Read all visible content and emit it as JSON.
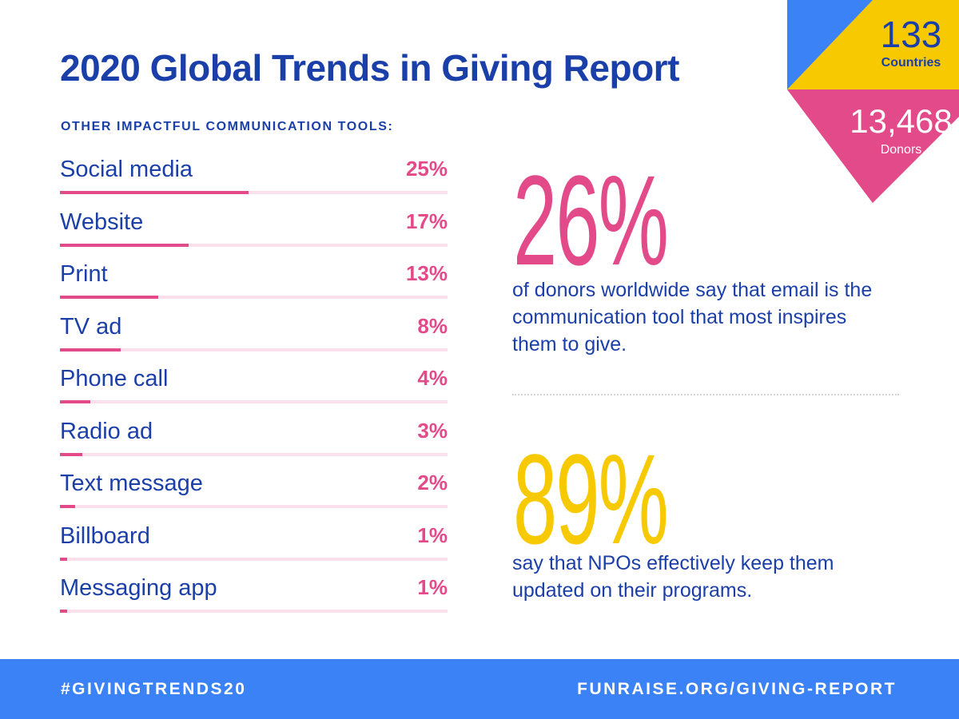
{
  "title": "2020 Global Trends in Giving Report",
  "chart_data": {
    "type": "bar",
    "title": "OTHER IMPACTFUL COMMUNICATION TOOLS:",
    "categories": [
      "Social media",
      "Website",
      "Print",
      "TV ad",
      "Phone call",
      "Radio ad",
      "Text message",
      "Billboard",
      "Messaging app"
    ],
    "values": [
      25,
      17,
      13,
      8,
      4,
      3,
      2,
      1,
      1
    ],
    "value_labels": [
      "25%",
      "17%",
      "13%",
      "8%",
      "4%",
      "3%",
      "2%",
      "1%",
      "1%"
    ],
    "unit": "%",
    "ylim": [
      0,
      100
    ],
    "orientation": "horizontal"
  },
  "stats": [
    {
      "value": "26%",
      "text": "of donors worldwide say that email is the communication tool that most inspires them to give."
    },
    {
      "value": "89%",
      "text": "say that NPOs effectively keep them updated on their programs."
    }
  ],
  "badge": {
    "countries_value": "133",
    "countries_label": "Countries",
    "donors_value": "13,468",
    "donors_label": "Donors"
  },
  "footer": {
    "hashtag": "#GIVINGTRENDS20",
    "url": "FUNRAISE.ORG/GIVING-REPORT"
  },
  "colors": {
    "navy": "#1b3fa8",
    "pink": "#e34a8a",
    "yellow": "#f7c900",
    "blue": "#3b82f6",
    "track": "#fbe0ec"
  }
}
